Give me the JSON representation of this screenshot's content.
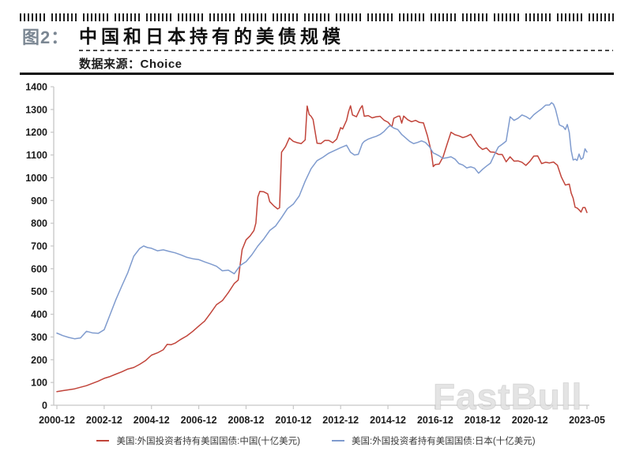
{
  "figure": {
    "label": "图2：",
    "title": "中国和日本持有的美债规模",
    "source": "数据来源：Choice"
  },
  "watermark": "FastBull",
  "chart_data": {
    "type": "line",
    "title": "中国和日本持有的美债规模",
    "xlabel": "",
    "ylabel": "",
    "x_unit": "year-month",
    "x_range": [
      "2000-12",
      "2023-05"
    ],
    "ylim": [
      0,
      1400
    ],
    "y_ticks": [
      0,
      100,
      200,
      300,
      400,
      500,
      600,
      700,
      800,
      900,
      1000,
      1100,
      1200,
      1300,
      1400
    ],
    "x_tick_labels": [
      "2000-12",
      "2002-12",
      "2004-12",
      "2006-12",
      "2008-12",
      "2010-12",
      "2012-12",
      "2014-12",
      "2016-12",
      "2018-12",
      "2020-12",
      "2023-05"
    ],
    "grid": false,
    "legend_position": "bottom",
    "axis_color": "#c6c6c6",
    "series": [
      {
        "name": "美国:外国投资者持有美国国债:中国(十亿美元)",
        "color": "#c1443a",
        "points": [
          [
            "2000-12",
            60
          ],
          [
            "2001-03",
            64
          ],
          [
            "2001-06",
            68
          ],
          [
            "2001-09",
            72
          ],
          [
            "2001-12",
            79
          ],
          [
            "2002-03",
            86
          ],
          [
            "2002-06",
            96
          ],
          [
            "2002-09",
            106
          ],
          [
            "2002-12",
            118
          ],
          [
            "2003-03",
            126
          ],
          [
            "2003-06",
            137
          ],
          [
            "2003-09",
            147
          ],
          [
            "2003-12",
            159
          ],
          [
            "2004-03",
            166
          ],
          [
            "2004-06",
            180
          ],
          [
            "2004-09",
            196
          ],
          [
            "2004-12",
            220
          ],
          [
            "2005-03",
            230
          ],
          [
            "2005-06",
            244
          ],
          [
            "2005-08",
            268
          ],
          [
            "2005-10",
            266
          ],
          [
            "2005-12",
            273
          ],
          [
            "2006-03",
            290
          ],
          [
            "2006-06",
            305
          ],
          [
            "2006-09",
            325
          ],
          [
            "2006-12",
            348
          ],
          [
            "2007-03",
            370
          ],
          [
            "2007-06",
            405
          ],
          [
            "2007-09",
            442
          ],
          [
            "2007-12",
            460
          ],
          [
            "2008-03",
            495
          ],
          [
            "2008-06",
            535
          ],
          [
            "2008-08",
            550
          ],
          [
            "2008-09",
            618
          ],
          [
            "2008-10",
            684
          ],
          [
            "2008-12",
            727
          ],
          [
            "2009-02",
            744
          ],
          [
            "2009-04",
            768
          ],
          [
            "2009-05",
            801
          ],
          [
            "2009-06",
            916
          ],
          [
            "2009-07",
            940
          ],
          [
            "2009-09",
            938
          ],
          [
            "2009-11",
            929
          ],
          [
            "2009-12",
            895
          ],
          [
            "2010-02",
            877
          ],
          [
            "2010-04",
            863
          ],
          [
            "2010-05",
            868
          ],
          [
            "2010-06",
            1112
          ],
          [
            "2010-08",
            1137
          ],
          [
            "2010-10",
            1175
          ],
          [
            "2010-12",
            1160
          ],
          [
            "2011-02",
            1154
          ],
          [
            "2011-04",
            1150
          ],
          [
            "2011-06",
            1166
          ],
          [
            "2011-07",
            1315
          ],
          [
            "2011-08",
            1278
          ],
          [
            "2011-09",
            1270
          ],
          [
            "2011-10",
            1256
          ],
          [
            "2011-12",
            1152
          ],
          [
            "2012-02",
            1150
          ],
          [
            "2012-04",
            1164
          ],
          [
            "2012-06",
            1164
          ],
          [
            "2012-08",
            1154
          ],
          [
            "2012-10",
            1170
          ],
          [
            "2012-12",
            1220
          ],
          [
            "2013-01",
            1214
          ],
          [
            "2013-03",
            1252
          ],
          [
            "2013-04",
            1290
          ],
          [
            "2013-05",
            1316
          ],
          [
            "2013-06",
            1276
          ],
          [
            "2013-08",
            1268
          ],
          [
            "2013-10",
            1305
          ],
          [
            "2013-11",
            1317
          ],
          [
            "2013-12",
            1270
          ],
          [
            "2014-02",
            1273
          ],
          [
            "2014-04",
            1263
          ],
          [
            "2014-06",
            1268
          ],
          [
            "2014-08",
            1270
          ],
          [
            "2014-10",
            1253
          ],
          [
            "2014-12",
            1244
          ],
          [
            "2015-02",
            1224
          ],
          [
            "2015-03",
            1261
          ],
          [
            "2015-05",
            1270
          ],
          [
            "2015-06",
            1271
          ],
          [
            "2015-07",
            1240
          ],
          [
            "2015-08",
            1271
          ],
          [
            "2015-10",
            1255
          ],
          [
            "2015-12",
            1246
          ],
          [
            "2016-02",
            1252
          ],
          [
            "2016-04",
            1243
          ],
          [
            "2016-06",
            1241
          ],
          [
            "2016-08",
            1185
          ],
          [
            "2016-10",
            1116
          ],
          [
            "2016-11",
            1049
          ],
          [
            "2016-12",
            1058
          ],
          [
            "2017-02",
            1060
          ],
          [
            "2017-04",
            1092
          ],
          [
            "2017-06",
            1147
          ],
          [
            "2017-08",
            1200
          ],
          [
            "2017-10",
            1189
          ],
          [
            "2017-12",
            1184
          ],
          [
            "2018-02",
            1176
          ],
          [
            "2018-04",
            1182
          ],
          [
            "2018-06",
            1191
          ],
          [
            "2018-08",
            1165
          ],
          [
            "2018-10",
            1139
          ],
          [
            "2018-12",
            1124
          ],
          [
            "2019-02",
            1131
          ],
          [
            "2019-04",
            1113
          ],
          [
            "2019-06",
            1112
          ],
          [
            "2019-08",
            1103
          ],
          [
            "2019-10",
            1102
          ],
          [
            "2019-12",
            1070
          ],
          [
            "2020-02",
            1092
          ],
          [
            "2020-04",
            1073
          ],
          [
            "2020-06",
            1074
          ],
          [
            "2020-08",
            1068
          ],
          [
            "2020-10",
            1054
          ],
          [
            "2020-12",
            1072
          ],
          [
            "2021-02",
            1095
          ],
          [
            "2021-04",
            1096
          ],
          [
            "2021-06",
            1062
          ],
          [
            "2021-08",
            1068
          ],
          [
            "2021-10",
            1065
          ],
          [
            "2021-12",
            1069
          ],
          [
            "2022-02",
            1055
          ],
          [
            "2022-04",
            1003
          ],
          [
            "2022-06",
            968
          ],
          [
            "2022-07",
            970
          ],
          [
            "2022-08",
            972
          ],
          [
            "2022-09",
            933
          ],
          [
            "2022-10",
            910
          ],
          [
            "2022-11",
            870
          ],
          [
            "2022-12",
            867
          ],
          [
            "2023-01",
            859
          ],
          [
            "2023-02",
            849
          ],
          [
            "2023-03",
            869
          ],
          [
            "2023-04",
            869
          ],
          [
            "2023-05",
            847
          ]
        ]
      },
      {
        "name": "美国:外国投资者持有美国国债:日本(十亿美元)",
        "color": "#7f9bce",
        "points": [
          [
            "2000-12",
            317
          ],
          [
            "2001-03",
            306
          ],
          [
            "2001-06",
            298
          ],
          [
            "2001-09",
            292
          ],
          [
            "2001-12",
            296
          ],
          [
            "2002-03",
            325
          ],
          [
            "2002-06",
            318
          ],
          [
            "2002-09",
            316
          ],
          [
            "2002-12",
            332
          ],
          [
            "2003-03",
            398
          ],
          [
            "2003-06",
            465
          ],
          [
            "2003-09",
            525
          ],
          [
            "2003-12",
            583
          ],
          [
            "2004-03",
            655
          ],
          [
            "2004-06",
            689
          ],
          [
            "2004-08",
            700
          ],
          [
            "2004-10",
            693
          ],
          [
            "2004-12",
            690
          ],
          [
            "2005-03",
            679
          ],
          [
            "2005-06",
            683
          ],
          [
            "2005-09",
            676
          ],
          [
            "2005-12",
            670
          ],
          [
            "2006-03",
            661
          ],
          [
            "2006-06",
            650
          ],
          [
            "2006-09",
            644
          ],
          [
            "2006-12",
            640
          ],
          [
            "2007-03",
            630
          ],
          [
            "2007-06",
            621
          ],
          [
            "2007-09",
            611
          ],
          [
            "2007-12",
            591
          ],
          [
            "2008-03",
            594
          ],
          [
            "2008-06",
            578
          ],
          [
            "2008-09",
            614
          ],
          [
            "2008-12",
            631
          ],
          [
            "2009-03",
            662
          ],
          [
            "2009-06",
            700
          ],
          [
            "2009-09",
            731
          ],
          [
            "2009-12",
            768
          ],
          [
            "2010-03",
            788
          ],
          [
            "2010-06",
            825
          ],
          [
            "2010-09",
            864
          ],
          [
            "2010-12",
            884
          ],
          [
            "2011-03",
            920
          ],
          [
            "2011-06",
            985
          ],
          [
            "2011-09",
            1040
          ],
          [
            "2011-12",
            1075
          ],
          [
            "2012-03",
            1090
          ],
          [
            "2012-06",
            1108
          ],
          [
            "2012-09",
            1120
          ],
          [
            "2012-12",
            1132
          ],
          [
            "2013-03",
            1143
          ],
          [
            "2013-05",
            1112
          ],
          [
            "2013-07",
            1100
          ],
          [
            "2013-09",
            1103
          ],
          [
            "2013-11",
            1150
          ],
          [
            "2013-12",
            1160
          ],
          [
            "2014-02",
            1170
          ],
          [
            "2014-04",
            1176
          ],
          [
            "2014-06",
            1182
          ],
          [
            "2014-08",
            1190
          ],
          [
            "2014-10",
            1203
          ],
          [
            "2014-12",
            1222
          ],
          [
            "2015-01",
            1230
          ],
          [
            "2015-03",
            1218
          ],
          [
            "2015-05",
            1212
          ],
          [
            "2015-07",
            1190
          ],
          [
            "2015-09",
            1175
          ],
          [
            "2015-11",
            1160
          ],
          [
            "2016-01",
            1150
          ],
          [
            "2016-03",
            1155
          ],
          [
            "2016-05",
            1162
          ],
          [
            "2016-07",
            1155
          ],
          [
            "2016-09",
            1137
          ],
          [
            "2016-11",
            1109
          ],
          [
            "2016-12",
            1105
          ],
          [
            "2017-02",
            1096
          ],
          [
            "2017-04",
            1085
          ],
          [
            "2017-06",
            1088
          ],
          [
            "2017-08",
            1092
          ],
          [
            "2017-10",
            1082
          ],
          [
            "2017-12",
            1062
          ],
          [
            "2018-02",
            1056
          ],
          [
            "2018-04",
            1043
          ],
          [
            "2018-06",
            1048
          ],
          [
            "2018-08",
            1042
          ],
          [
            "2018-10",
            1020
          ],
          [
            "2018-12",
            1037
          ],
          [
            "2019-02",
            1051
          ],
          [
            "2019-04",
            1064
          ],
          [
            "2019-06",
            1101
          ],
          [
            "2019-08",
            1135
          ],
          [
            "2019-10",
            1147
          ],
          [
            "2019-12",
            1161
          ],
          [
            "2020-02",
            1268
          ],
          [
            "2020-04",
            1252
          ],
          [
            "2020-06",
            1261
          ],
          [
            "2020-08",
            1276
          ],
          [
            "2020-10",
            1269
          ],
          [
            "2020-12",
            1258
          ],
          [
            "2021-02",
            1277
          ],
          [
            "2021-04",
            1290
          ],
          [
            "2021-06",
            1303
          ],
          [
            "2021-08",
            1319
          ],
          [
            "2021-10",
            1320
          ],
          [
            "2021-11",
            1330
          ],
          [
            "2021-12",
            1323
          ],
          [
            "2022-01",
            1302
          ],
          [
            "2022-03",
            1232
          ],
          [
            "2022-05",
            1224
          ],
          [
            "2022-06",
            1212
          ],
          [
            "2022-07",
            1234
          ],
          [
            "2022-08",
            1199
          ],
          [
            "2022-09",
            1120
          ],
          [
            "2022-10",
            1078
          ],
          [
            "2022-11",
            1082
          ],
          [
            "2022-12",
            1076
          ],
          [
            "2023-01",
            1104
          ],
          [
            "2023-02",
            1081
          ],
          [
            "2023-03",
            1087
          ],
          [
            "2023-04",
            1127
          ],
          [
            "2023-05",
            1113
          ]
        ]
      }
    ]
  }
}
